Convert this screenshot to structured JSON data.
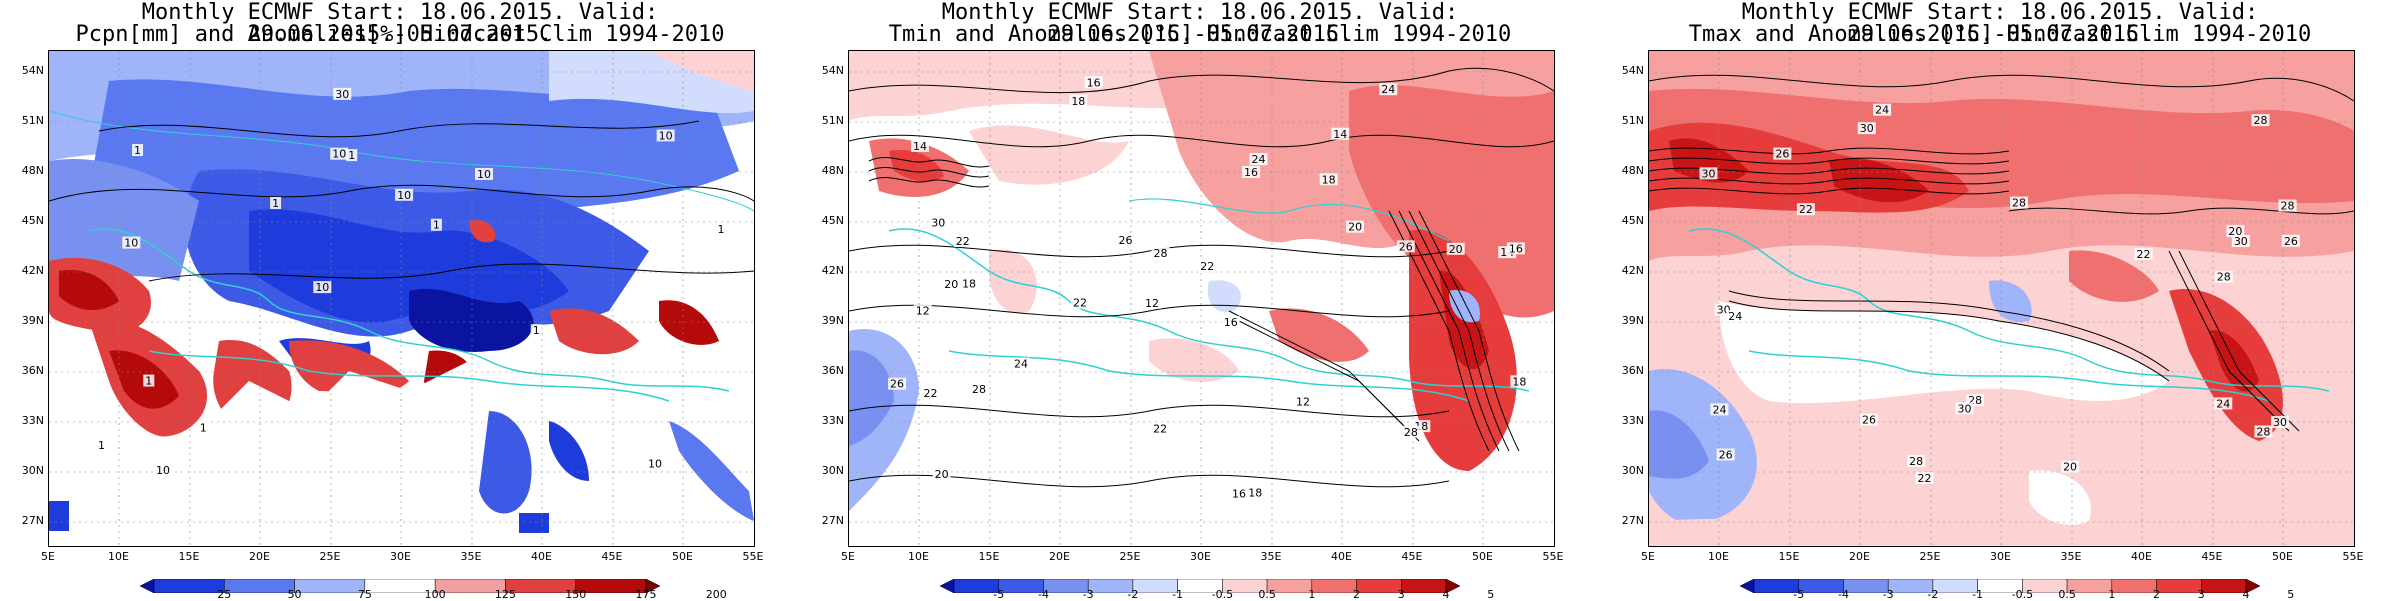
{
  "panels": [
    {
      "title1": "Monthly ECMWF Start: 18.06.2015. Valid: 29.06.2015.-05.07.2015.",
      "title2": "Pcpn[mm] and Anomalies[%] Hindcast Clim 1994-2010",
      "colorbar_ticks": [
        "25",
        "50",
        "75",
        "100",
        "125",
        "150",
        "175",
        "200"
      ],
      "colorbar_colors": [
        "#0a14a0",
        "#1e3cdc",
        "#5a78f0",
        "#a0b4fa",
        "#ffffff",
        "#f0a0a0",
        "#e04040",
        "#b40a0a",
        "#780000"
      ],
      "contour_labels": [
        "10",
        "10",
        "10",
        "10",
        "10",
        "10",
        "10",
        "10",
        "1",
        "1",
        "1",
        "1",
        "1",
        "1",
        "1",
        "1",
        "30",
        "1"
      ]
    },
    {
      "title1": "Monthly ECMWF Start: 18.06.2015. Valid: 29.06.2015.-05.07.2015.",
      "title2": "Tmin and Anomalies [°C] Hindcast Clim 1994-2010",
      "colorbar_ticks": [
        "-5",
        "-4",
        "-3",
        "-2",
        "-1",
        "-0.5",
        "0.5",
        "1",
        "2",
        "3",
        "4",
        "5"
      ],
      "colorbar_colors": [
        "#0a14a0",
        "#1e3cdc",
        "#3c5ae6",
        "#7890f0",
        "#a0b4fa",
        "#d2dcfc",
        "#ffffff",
        "#fcd2d2",
        "#f6a0a0",
        "#f07070",
        "#e63c3c",
        "#c81414",
        "#8c0000"
      ],
      "contour_labels": [
        "16",
        "14",
        "14",
        "12",
        "16",
        "18",
        "14",
        "18",
        "12",
        "16",
        "22",
        "20",
        "18",
        "22",
        "16",
        "18",
        "22",
        "24",
        "20",
        "24",
        "22",
        "20",
        "16",
        "20",
        "26",
        "30",
        "28",
        "26",
        "18",
        "22",
        "28",
        "24",
        "28",
        "26",
        "12",
        "18"
      ]
    },
    {
      "title1": "Monthly ECMWF Start: 18.06.2015. Valid: 29.06.2015.-05.07.2015.",
      "title2": "Tmax and Anomalies [°C] Hindcast Clim 1994-2010",
      "colorbar_ticks": [
        "-5",
        "-4",
        "-3",
        "-2",
        "-1",
        "-0.5",
        "0.5",
        "1",
        "2",
        "3",
        "4",
        "5"
      ],
      "colorbar_colors": [
        "#0a14a0",
        "#1e3cdc",
        "#3c5ae6",
        "#7890f0",
        "#a0b4fa",
        "#d2dcfc",
        "#ffffff",
        "#fcd2d2",
        "#f6a0a0",
        "#f07070",
        "#e63c3c",
        "#c81414",
        "#8c0000"
      ],
      "contour_labels": [
        "24",
        "28",
        "30",
        "28",
        "26",
        "24",
        "20",
        "26",
        "28",
        "22",
        "26",
        "30",
        "28",
        "22",
        "24",
        "26",
        "28",
        "30",
        "28",
        "30",
        "30",
        "24",
        "20",
        "22",
        "28",
        "30"
      ]
    }
  ],
  "lat_labels": [
    "54N",
    "51N",
    "48N",
    "45N",
    "42N",
    "39N",
    "36N",
    "33N",
    "30N",
    "27N"
  ],
  "lon_labels": [
    "5E",
    "10E",
    "15E",
    "20E",
    "25E",
    "30E",
    "35E",
    "40E",
    "45E",
    "50E",
    "55E"
  ]
}
